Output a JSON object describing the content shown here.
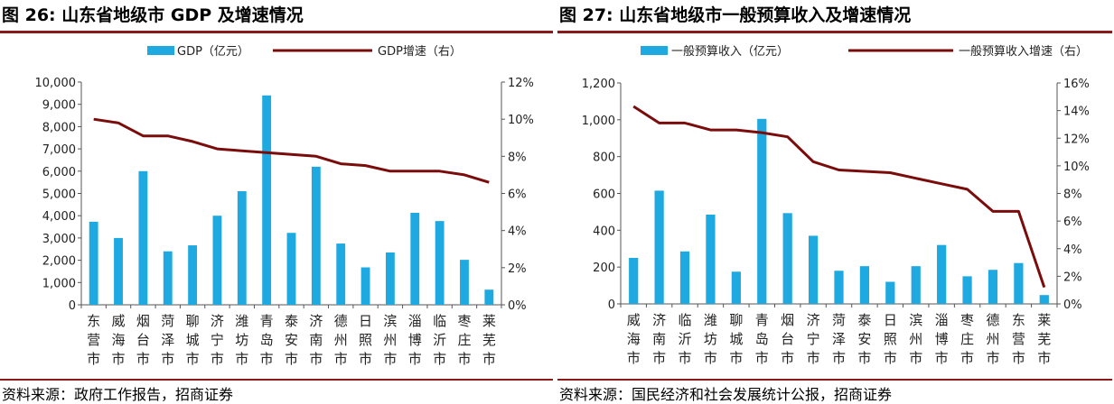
{
  "chart_data": [
    {
      "type": "bar+line",
      "title": "图 26:  山东省地级市 GDP 及增速情况",
      "legend": [
        {
          "label": "GDP（亿元）",
          "kind": "bar",
          "color": "#1FA9E1"
        },
        {
          "label": "GDP增速（右）",
          "kind": "line",
          "color": "#7B0C0C"
        }
      ],
      "categories": [
        "东营市",
        "威海市",
        "烟台市",
        "菏泽市",
        "聊城市",
        "济宁市",
        "潍坊市",
        "青岛市",
        "泰安市",
        "济南市",
        "德州市",
        "日照市",
        "滨州市",
        "淄博市",
        "临沂市",
        "枣庄市",
        "莱芜市"
      ],
      "series": [
        {
          "name": "GDP（亿元）",
          "axis": "left",
          "type": "bar",
          "values": [
            3730,
            3000,
            6000,
            2400,
            2670,
            4000,
            5100,
            9400,
            3230,
            6200,
            2750,
            1680,
            2350,
            4130,
            3760,
            2020,
            680
          ]
        },
        {
          "name": "GDP增速（右）",
          "axis": "right",
          "type": "line",
          "values": [
            10.0,
            9.8,
            9.1,
            9.1,
            8.8,
            8.4,
            8.3,
            8.2,
            8.1,
            8.0,
            7.6,
            7.5,
            7.2,
            7.2,
            7.2,
            7.0,
            6.6
          ]
        }
      ],
      "y_left": {
        "min": 0,
        "max": 10000,
        "step": 1000,
        "ticks": [
          "0",
          "1,000",
          "2,000",
          "3,000",
          "4,000",
          "5,000",
          "6,000",
          "7,000",
          "8,000",
          "9,000",
          "10,000"
        ]
      },
      "y_right": {
        "min": 0,
        "max": 12,
        "step": 2,
        "ticks": [
          "0%",
          "2%",
          "4%",
          "6%",
          "8%",
          "10%",
          "12%"
        ]
      },
      "grid": false,
      "legend_position": "top",
      "source": "资料来源：政府工作报告，招商证券"
    },
    {
      "type": "bar+line",
      "title": "图 27:  山东省地级市一般预算收入及增速情况",
      "legend": [
        {
          "label": "一般预算收入（亿元）",
          "kind": "bar",
          "color": "#1FA9E1"
        },
        {
          "label": "一般预算收入增速（右）",
          "kind": "line",
          "color": "#7B0C0C"
        }
      ],
      "categories": [
        "威海市",
        "济南市",
        "临沂市",
        "潍坊市",
        "聊城市",
        "青岛市",
        "烟台市",
        "济宁市",
        "菏泽市",
        "泰安市",
        "日照市",
        "滨州市",
        "淄博市",
        "枣庄市",
        "德州市",
        "东营市",
        "莱芜市"
      ],
      "series": [
        {
          "name": "一般预算收入（亿元）",
          "axis": "left",
          "type": "bar",
          "values": [
            250,
            615,
            285,
            485,
            175,
            1005,
            493,
            370,
            180,
            205,
            120,
            205,
            320,
            150,
            185,
            222,
            48
          ]
        },
        {
          "name": "一般预算收入增速（右）",
          "axis": "right",
          "type": "line",
          "values": [
            14.3,
            13.1,
            13.1,
            12.6,
            12.6,
            12.4,
            12.1,
            10.3,
            9.7,
            9.6,
            9.5,
            9.1,
            8.7,
            8.3,
            6.7,
            6.7,
            1.2
          ]
        }
      ],
      "y_left": {
        "min": 0,
        "max": 1200,
        "step": 200,
        "ticks": [
          "0",
          "200",
          "400",
          "600",
          "800",
          "1,000",
          "1,200"
        ]
      },
      "y_right": {
        "min": 0,
        "max": 16,
        "step": 2,
        "ticks": [
          "0%",
          "2%",
          "4%",
          "6%",
          "8%",
          "10%",
          "12%",
          "14%",
          "16%"
        ]
      },
      "grid": false,
      "legend_position": "top",
      "source": "资料来源：国民经济和社会发展统计公报，招商证券"
    }
  ]
}
